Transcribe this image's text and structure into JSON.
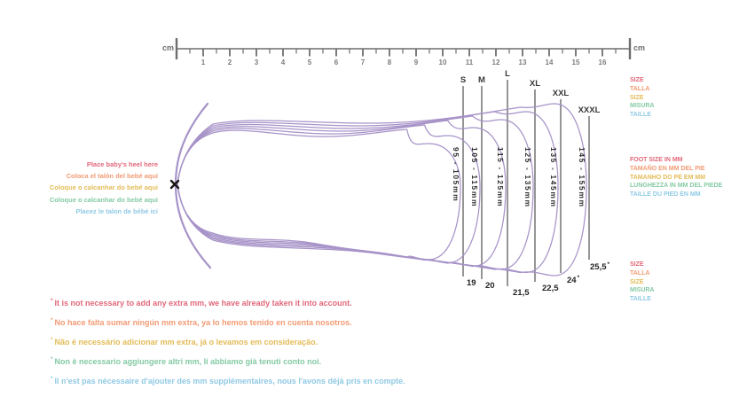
{
  "colors": {
    "red": "#e2687b",
    "orange": "#f29b74",
    "yellow": "#e3bc58",
    "green": "#84caa4",
    "blue": "#90c9e4",
    "purple": "#a793c8",
    "line_gray": "#8a8a8a",
    "ruler_gray": "#6d6d6d",
    "text_dark": "#2e2e2e"
  },
  "ruler": {
    "unit_left": "cm",
    "unit_right": "cm",
    "numbers": [
      "1",
      "2",
      "3",
      "4",
      "5",
      "6",
      "7",
      "8",
      "9",
      "10",
      "11",
      "12",
      "13",
      "14",
      "15",
      "16"
    ]
  },
  "sizes": [
    {
      "label": "S",
      "range_mm": "95 - 105mm",
      "eu_size": "19",
      "asterisk": false
    },
    {
      "label": "M",
      "range_mm": "105 - 115mm",
      "eu_size": "20",
      "asterisk": false
    },
    {
      "label": "L",
      "range_mm": "115 - 125mm",
      "eu_size": "21,5",
      "asterisk": false
    },
    {
      "label": "XL",
      "range_mm": "125 - 135mm",
      "eu_size": "22,5",
      "asterisk": false
    },
    {
      "label": "XXL",
      "range_mm": "135 - 145mm",
      "eu_size": "24",
      "asterisk": true
    },
    {
      "label": "XXXL",
      "range_mm": "145 - 155mm",
      "eu_size": "25,5",
      "asterisk": true
    }
  ],
  "heel_labels": [
    {
      "text": "Place baby's heel here",
      "color": "#e2687b"
    },
    {
      "text": "Coloca el talón del bebé aquí",
      "color": "#f29b74"
    },
    {
      "text": "Coloque o calcanhar do bebé aqui",
      "color": "#e3bc58"
    },
    {
      "text": "Coloque o calcanhar do bebé aqui",
      "color": "#84caa4"
    },
    {
      "text": "Placez le talon de bébé ici",
      "color": "#90c9e4"
    }
  ],
  "size_word_labels_top": [
    {
      "text": "SIZE",
      "color": "#e2687b"
    },
    {
      "text": "TALLA",
      "color": "#f29b74"
    },
    {
      "text": "SIZE",
      "color": "#e3bc58"
    },
    {
      "text": "MISURA",
      "color": "#84caa4"
    },
    {
      "text": "TAILLE",
      "color": "#90c9e4"
    }
  ],
  "foot_size_labels": [
    {
      "text": "FOOT SIZE IN MM",
      "color": "#e2687b"
    },
    {
      "text": "TAMAÑO EN MM DEL PIE",
      "color": "#f29b74"
    },
    {
      "text": "TAMANHO DO PÉ EM MM",
      "color": "#e3bc58"
    },
    {
      "text": "LUNGHEZZA IN MM DEL PIEDE",
      "color": "#84caa4"
    },
    {
      "text": "TAILLE DU PIED EN MM",
      "color": "#90c9e4"
    }
  ],
  "size_word_labels_bottom": [
    {
      "text": "SIZE",
      "color": "#e2687b"
    },
    {
      "text": "TALLA",
      "color": "#f29b74"
    },
    {
      "text": "SIZE",
      "color": "#e3bc58"
    },
    {
      "text": "MISURA",
      "color": "#84caa4"
    },
    {
      "text": "TAILLE",
      "color": "#90c9e4"
    }
  ],
  "footnotes": [
    {
      "text": "It is not necessary to add any extra mm, we have already taken it into account.",
      "color": "#e2687b"
    },
    {
      "text": "No hace falta sumar ningún mm extra, ya lo hemos tenido en cuenta nosotros.",
      "color": "#f29b74"
    },
    {
      "text": "Não é necessário adicionar mm extra, já o levamos em consideração.",
      "color": "#e3bc58"
    },
    {
      "text": "Non è necessario aggiungere altri mm, li abbiamo già tenuti conto noi.",
      "color": "#84caa4"
    },
    {
      "text": "Il n'est pas nécessaire d'ajouter des mm supplémentaires, nous l'avons déjà pris en compte.",
      "color": "#90c9e4"
    }
  ]
}
